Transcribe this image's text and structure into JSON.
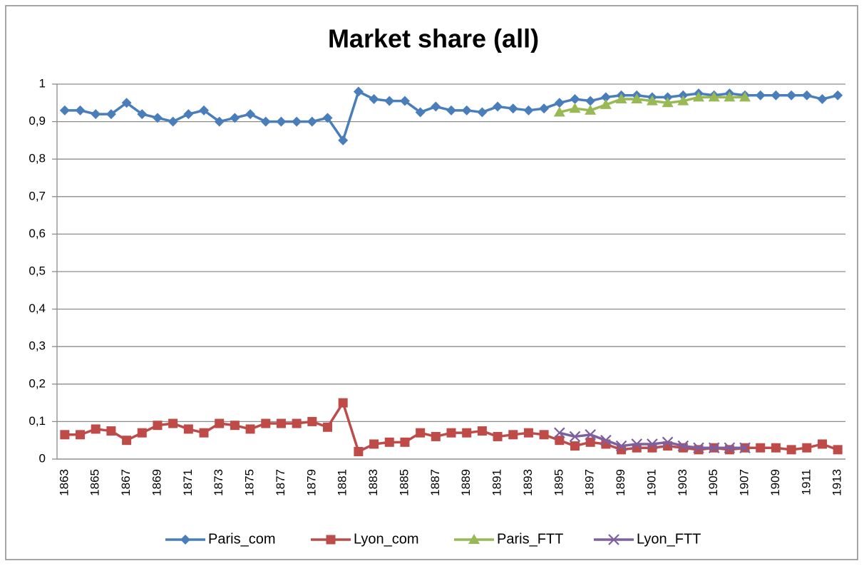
{
  "chart_data": {
    "type": "line",
    "title": "Market share (all)",
    "categories": [
      "1863",
      null,
      "1865",
      null,
      "1867",
      null,
      "1869",
      null,
      "1871",
      null,
      "1873",
      null,
      "1875",
      null,
      "1877",
      null,
      "1879",
      null,
      "1881",
      null,
      "1883",
      null,
      "1885",
      null,
      "1887",
      null,
      "1889",
      null,
      "1891",
      null,
      "1893",
      null,
      "1895",
      null,
      "1897",
      null,
      "1899",
      null,
      "1901",
      null,
      "1903",
      null,
      "1905",
      null,
      "1907",
      null,
      "1909",
      null,
      "1911",
      null,
      "1913"
    ],
    "series": [
      {
        "name": "Paris_com",
        "color": "#4a7ebb",
        "marker": "diamond",
        "values": [
          0.93,
          0.93,
          0.92,
          0.92,
          0.95,
          0.92,
          0.91,
          0.9,
          0.92,
          0.93,
          0.9,
          0.91,
          0.92,
          0.9,
          0.9,
          0.9,
          0.9,
          0.91,
          0.85,
          0.98,
          0.96,
          0.955,
          0.955,
          0.925,
          0.94,
          0.93,
          0.93,
          0.925,
          0.94,
          0.935,
          0.93,
          0.935,
          0.95,
          0.96,
          0.955,
          0.965,
          0.97,
          0.97,
          0.965,
          0.965,
          0.97,
          0.975,
          0.97,
          0.975,
          0.97,
          0.97,
          0.97,
          0.97,
          0.97,
          0.96,
          0.97
        ]
      },
      {
        "name": "Lyon_com",
        "color": "#be4b48",
        "marker": "square",
        "values": [
          0.065,
          0.065,
          0.08,
          0.075,
          0.05,
          0.07,
          0.09,
          0.095,
          0.08,
          0.07,
          0.095,
          0.09,
          0.08,
          0.095,
          0.095,
          0.095,
          0.1,
          0.085,
          0.15,
          0.02,
          0.04,
          0.045,
          0.045,
          0.07,
          0.06,
          0.07,
          0.07,
          0.075,
          0.06,
          0.065,
          0.07,
          0.065,
          0.05,
          0.035,
          0.045,
          0.04,
          0.025,
          0.03,
          0.03,
          0.035,
          0.03,
          0.025,
          0.03,
          0.025,
          0.03,
          0.03,
          0.03,
          0.025,
          0.03,
          0.04,
          0.025
        ]
      },
      {
        "name": "Paris_FTT",
        "color": "#98b954",
        "marker": "triangle",
        "values": [
          null,
          null,
          null,
          null,
          null,
          null,
          null,
          null,
          null,
          null,
          null,
          null,
          null,
          null,
          null,
          null,
          null,
          null,
          null,
          null,
          null,
          null,
          null,
          null,
          null,
          null,
          null,
          null,
          null,
          null,
          null,
          null,
          0.925,
          0.935,
          0.93,
          0.945,
          0.96,
          0.96,
          0.955,
          0.95,
          0.955,
          0.965,
          0.965,
          0.965,
          0.965,
          null,
          null,
          null,
          null,
          null,
          null
        ]
      },
      {
        "name": "Lyon_FTT",
        "color": "#7d60a0",
        "marker": "x",
        "values": [
          null,
          null,
          null,
          null,
          null,
          null,
          null,
          null,
          null,
          null,
          null,
          null,
          null,
          null,
          null,
          null,
          null,
          null,
          null,
          null,
          null,
          null,
          null,
          null,
          null,
          null,
          null,
          null,
          null,
          null,
          null,
          null,
          0.07,
          0.06,
          0.065,
          0.05,
          0.035,
          0.04,
          0.04,
          0.045,
          0.035,
          0.03,
          0.03,
          0.03,
          0.03,
          null,
          null,
          null,
          null,
          null,
          null
        ]
      }
    ],
    "ylim": [
      0,
      1
    ],
    "yticks": [
      0,
      {
        "value": 0.1,
        "label": "0,1"
      },
      {
        "value": 0.2,
        "label": "0,2"
      },
      {
        "value": 0.3,
        "label": "0,3"
      },
      {
        "value": 0.4,
        "label": "0,4"
      },
      {
        "value": 0.5,
        "label": "0,5"
      },
      {
        "value": 0.6,
        "label": "0,6"
      },
      {
        "value": 0.7,
        "label": "0,7"
      },
      {
        "value": 0.8,
        "label": "0,8"
      },
      {
        "value": 0.9,
        "label": "0,9"
      },
      1
    ],
    "grid": true,
    "legend": "bottom"
  }
}
